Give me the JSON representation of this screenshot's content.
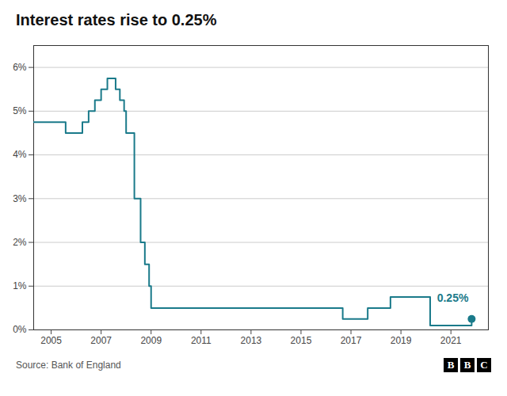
{
  "chart_data": {
    "type": "line",
    "title": "Interest rates rise to 0.25%",
    "source": "Source: Bank of England",
    "logo": [
      "B",
      "B",
      "C"
    ],
    "color": "#1a7a8a",
    "grid": true,
    "xlim": [
      2004.3,
      2022.5
    ],
    "xticks": [
      2005,
      2007,
      2009,
      2011,
      2013,
      2015,
      2017,
      2019,
      2021
    ],
    "ylim": [
      0,
      6.5
    ],
    "yticks": [
      {
        "value": 0,
        "label": "0%"
      },
      {
        "value": 1,
        "label": "1%"
      },
      {
        "value": 2,
        "label": "2%"
      },
      {
        "value": 3,
        "label": "3%"
      },
      {
        "value": 4,
        "label": "4%"
      },
      {
        "value": 5,
        "label": "5%"
      },
      {
        "value": 6,
        "label": "6%"
      }
    ],
    "x": [
      2004.3,
      2005.58,
      2005.58,
      2006.25,
      2006.25,
      2006.5,
      2006.5,
      2006.75,
      2006.75,
      2007.0,
      2007.0,
      2007.25,
      2007.25,
      2007.58,
      2007.58,
      2007.75,
      2007.75,
      2007.92,
      2007.92,
      2008.0,
      2008.0,
      2008.33,
      2008.33,
      2008.58,
      2008.58,
      2008.75,
      2008.75,
      2008.92,
      2008.92,
      2009.0,
      2009.0,
      2016.67,
      2016.67,
      2017.67,
      2017.67,
      2018.58,
      2018.58,
      2020.17,
      2020.17,
      2021.83,
      2021.83
    ],
    "values": [
      4.75,
      4.75,
      4.5,
      4.5,
      4.75,
      4.75,
      5.0,
      5.0,
      5.25,
      5.25,
      5.5,
      5.5,
      5.75,
      5.75,
      5.5,
      5.5,
      5.25,
      5.25,
      5.0,
      5.0,
      4.5,
      4.5,
      3.0,
      3.0,
      2.0,
      2.0,
      1.5,
      1.5,
      1.0,
      1.0,
      0.5,
      0.5,
      0.25,
      0.25,
      0.5,
      0.5,
      0.75,
      0.75,
      0.1,
      0.1,
      0.25
    ],
    "annotations": [
      {
        "text": "0.25%",
        "x": 2021.83,
        "y": 0.25,
        "color": "#1a7a8a",
        "marker": "circle"
      }
    ]
  }
}
